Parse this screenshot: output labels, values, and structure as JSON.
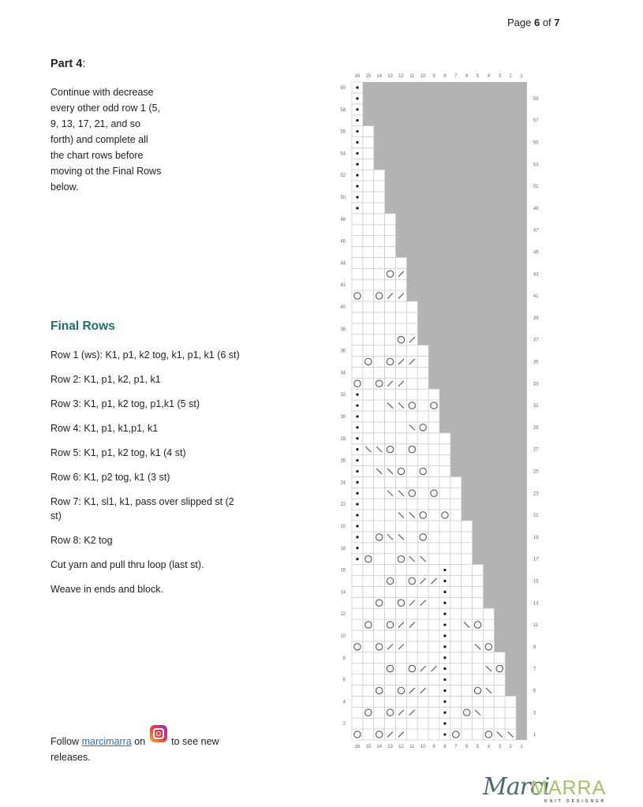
{
  "header": {
    "page_prefix": "Page ",
    "page_current": "6",
    "page_of": " of ",
    "page_total": "7"
  },
  "part": {
    "title": "Part 4",
    "colon": ":",
    "lines": [
      "Continue with decrease",
      "every other odd row 1 (5,",
      "9, 13, 17, 21, and so",
      "forth) and complete all",
      "the chart rows before",
      "moving ot the Final Rows",
      "below."
    ]
  },
  "final_rows": {
    "title": "Final Rows",
    "steps": [
      "Row 1 (ws): K1, p1, k2 tog, k1, p1, k1 (6 st)",
      "Row 2: K1, p1, k2, p1, k1",
      "Row 3: K1, p1, k2 tog, p1,k1 (5 st)",
      "Row 4: K1, p1, k1,p1, k1",
      "Row 5: K1, p1, k2 tog, k1 (4 st)",
      "Row 6: K1, p2 tog, k1 (3 st)",
      "Row 7: K1, sl1, k1, pass over slipped st (2 st)",
      "Row 8: K2 tog",
      "Cut yarn and pull thru loop (last st).",
      "Weave in ends and block."
    ]
  },
  "follow": {
    "prefix": "Follow ",
    "link": "marcimarra",
    "middle": " on ",
    "icon": "instagram-icon",
    "suffix": " to see new releases."
  },
  "logo": {
    "script": "Marci",
    "caps": "MARRA",
    "sub": "KNIT DESIGNER",
    "script_color": "#4a6a6a",
    "caps_color": "#a8bf6a"
  },
  "chart_data": {
    "type": "table",
    "description_legend": {
      "o": "yarn-over",
      "f": "right-slant decrease (/)",
      "b": "left-slant decrease (\\)",
      "d": "purl dot",
      ".": "blank"
    },
    "columns": 16,
    "rows": 60,
    "column_labels": [
      "16",
      "15",
      "14",
      "13",
      "12",
      "11",
      "10",
      "9",
      "8",
      "7",
      "6",
      "5",
      "4",
      "3",
      "2",
      "1"
    ],
    "no_stitch_color": "#b3b3b3",
    "white_cells_per_row_rule": "rows 1-4: 15, then one fewer every 4 rows, rows 57-60: 1",
    "white_cells": [
      15,
      15,
      15,
      15,
      14,
      14,
      14,
      14,
      13,
      13,
      13,
      13,
      12,
      12,
      12,
      12,
      11,
      11,
      11,
      11,
      10,
      10,
      10,
      10,
      9,
      9,
      9,
      9,
      8,
      8,
      8,
      8,
      7,
      7,
      7,
      7,
      6,
      6,
      6,
      6,
      5,
      5,
      5,
      5,
      4,
      4,
      4,
      4,
      3,
      3,
      3,
      3,
      2,
      2,
      2,
      2,
      1,
      1,
      1,
      1
    ],
    "symbols": {
      "1": "o.off...do..obb.",
      "2": "........d.......",
      "3": ".o.off..d.ob....",
      "4": "........d.......",
      "5": "..o.off.d..ob...",
      "6": "........d.......",
      "7": "...o.offd...bo..",
      "8": "........d.......",
      "9": "o.off...d..bo...",
      "10": "........d.......",
      "11": ".o.off..d.bo....",
      "12": "........d.......",
      "13": "..o.off.d.......",
      "14": "........d.......",
      "15": "...o.offd.......",
      "16": "........d.......",
      "17": "do..obb.........",
      "18": "d...............",
      "19": "d.obb.o.........",
      "20": "d...............",
      "21": "d...bbo.o.......",
      "22": "d...............",
      "23": "d..bbo.o........",
      "24": "d...............",
      "25": "d.bbo.o.........",
      "26": "d...............",
      "27": "dbbo.o..........",
      "28": "d...............",
      "29": "d....bo.........",
      "30": "d...............",
      "31": "d..bbo.o........",
      "32": "d...............",
      "33": "o.off...........",
      "35": ".o.off..........",
      "37": "....of..........",
      "41": "o.off...........",
      "43": "...of...........",
      "49": "d...............",
      "50": "d...............",
      "51": "d...............",
      "52": "d...............",
      "53": "d...............",
      "54": "d...............",
      "55": "d...............",
      "56": "d...............",
      "57": "d...............",
      "58": "d...............",
      "59": "d...............",
      "60": "d..............."
    }
  }
}
